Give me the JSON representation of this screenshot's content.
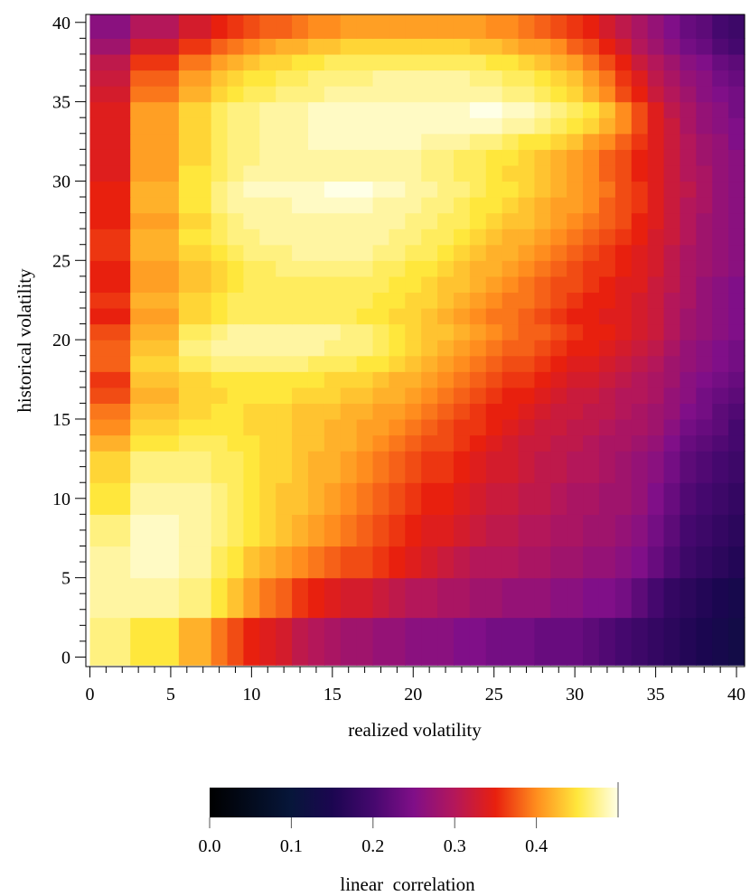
{
  "chart_data": {
    "type": "heatmap",
    "title": "",
    "xlabel": "realized volatility",
    "ylabel": "historical volatility",
    "xlim": [
      0,
      40
    ],
    "ylim": [
      0,
      40
    ],
    "x_ticks": [
      "0",
      "5",
      "10",
      "15",
      "20",
      "25",
      "30",
      "35",
      "40"
    ],
    "y_ticks": [
      "0",
      "5",
      "10",
      "15",
      "20",
      "25",
      "30",
      "35",
      "40"
    ],
    "x_bin_edges": [
      0,
      2.5,
      5.5,
      7.5,
      8.5,
      9.5,
      10.5,
      11.5,
      12.5,
      13.5,
      14.5,
      15.5,
      16.5,
      17.5,
      18.5,
      19.5,
      20.5,
      21.5,
      22.5,
      23.5,
      24.5,
      25.5,
      26.5,
      27.5,
      28.5,
      29.5,
      30.5,
      31.5,
      32.5,
      33.5,
      34.5,
      35.5,
      36.5,
      37.5,
      38.5,
      39.5,
      40.5
    ],
    "y_bin_edges": [
      -0.5,
      2.5,
      5,
      7,
      9,
      11,
      13,
      14,
      15,
      16,
      17,
      18,
      19,
      20,
      21,
      22,
      23,
      24,
      25,
      26,
      27,
      28,
      29,
      30,
      31,
      32,
      33,
      34,
      35,
      36,
      37,
      38,
      39,
      40.5
    ],
    "grid": false,
    "colorbar": {
      "label": "linear  correlation",
      "ticks": [
        "0.0",
        "0.1",
        "0.2",
        "0.3",
        "0.4"
      ],
      "range": [
        0,
        0.5
      ],
      "colormap": "inferno-like (black to purple to red to orange to yellow to pale yellow)"
    },
    "value_description": "linear correlation estimated per cell from colour; each row lists values for the x bins in order, rows ordered from bottom (historical volatility ~0) to top (~40)",
    "values": [
      [
        0.47,
        0.45,
        0.42,
        0.39,
        0.37,
        0.35,
        0.34,
        0.33,
        0.31,
        0.3,
        0.29,
        0.28,
        0.28,
        0.27,
        0.27,
        0.26,
        0.26,
        0.26,
        0.25,
        0.25,
        0.24,
        0.24,
        0.24,
        0.23,
        0.23,
        0.23,
        0.22,
        0.21,
        0.2,
        0.19,
        0.18,
        0.17,
        0.16,
        0.15,
        0.14,
        0.13
      ],
      [
        0.48,
        0.48,
        0.47,
        0.45,
        0.43,
        0.41,
        0.39,
        0.38,
        0.36,
        0.35,
        0.34,
        0.33,
        0.33,
        0.32,
        0.31,
        0.3,
        0.3,
        0.29,
        0.29,
        0.28,
        0.28,
        0.27,
        0.27,
        0.27,
        0.26,
        0.26,
        0.25,
        0.25,
        0.24,
        0.22,
        0.2,
        0.18,
        0.17,
        0.16,
        0.15,
        0.14
      ],
      [
        0.48,
        0.49,
        0.48,
        0.46,
        0.45,
        0.43,
        0.42,
        0.41,
        0.4,
        0.39,
        0.38,
        0.37,
        0.37,
        0.36,
        0.35,
        0.34,
        0.33,
        0.32,
        0.31,
        0.3,
        0.3,
        0.3,
        0.29,
        0.29,
        0.28,
        0.28,
        0.27,
        0.27,
        0.26,
        0.25,
        0.23,
        0.21,
        0.19,
        0.18,
        0.17,
        0.16
      ],
      [
        0.47,
        0.49,
        0.48,
        0.47,
        0.46,
        0.45,
        0.44,
        0.43,
        0.42,
        0.41,
        0.4,
        0.39,
        0.38,
        0.37,
        0.36,
        0.35,
        0.34,
        0.34,
        0.33,
        0.32,
        0.31,
        0.31,
        0.3,
        0.3,
        0.29,
        0.29,
        0.28,
        0.28,
        0.27,
        0.26,
        0.24,
        0.22,
        0.2,
        0.19,
        0.18,
        0.17
      ],
      [
        0.45,
        0.48,
        0.48,
        0.47,
        0.46,
        0.45,
        0.44,
        0.43,
        0.43,
        0.42,
        0.41,
        0.4,
        0.39,
        0.38,
        0.37,
        0.36,
        0.35,
        0.35,
        0.34,
        0.33,
        0.32,
        0.32,
        0.31,
        0.31,
        0.3,
        0.29,
        0.29,
        0.28,
        0.28,
        0.27,
        0.25,
        0.23,
        0.21,
        0.2,
        0.19,
        0.18
      ],
      [
        0.44,
        0.47,
        0.47,
        0.46,
        0.46,
        0.45,
        0.44,
        0.44,
        0.43,
        0.42,
        0.42,
        0.41,
        0.4,
        0.39,
        0.38,
        0.37,
        0.36,
        0.36,
        0.35,
        0.34,
        0.33,
        0.33,
        0.32,
        0.31,
        0.31,
        0.3,
        0.3,
        0.29,
        0.28,
        0.27,
        0.26,
        0.24,
        0.22,
        0.21,
        0.2,
        0.19
      ],
      [
        0.42,
        0.45,
        0.46,
        0.46,
        0.45,
        0.45,
        0.44,
        0.44,
        0.43,
        0.43,
        0.42,
        0.42,
        0.41,
        0.4,
        0.39,
        0.38,
        0.37,
        0.37,
        0.36,
        0.35,
        0.34,
        0.33,
        0.32,
        0.32,
        0.31,
        0.31,
        0.3,
        0.29,
        0.29,
        0.28,
        0.27,
        0.25,
        0.23,
        0.22,
        0.21,
        0.2
      ],
      [
        0.4,
        0.44,
        0.45,
        0.45,
        0.45,
        0.44,
        0.44,
        0.44,
        0.43,
        0.43,
        0.42,
        0.42,
        0.41,
        0.41,
        0.4,
        0.39,
        0.38,
        0.37,
        0.36,
        0.36,
        0.35,
        0.34,
        0.33,
        0.32,
        0.32,
        0.31,
        0.31,
        0.3,
        0.29,
        0.29,
        0.28,
        0.26,
        0.24,
        0.23,
        0.22,
        0.2
      ],
      [
        0.39,
        0.43,
        0.44,
        0.45,
        0.45,
        0.44,
        0.44,
        0.44,
        0.43,
        0.43,
        0.43,
        0.42,
        0.42,
        0.41,
        0.41,
        0.4,
        0.39,
        0.38,
        0.37,
        0.36,
        0.35,
        0.35,
        0.34,
        0.33,
        0.32,
        0.32,
        0.31,
        0.31,
        0.3,
        0.29,
        0.28,
        0.27,
        0.25,
        0.24,
        0.22,
        0.21
      ],
      [
        0.37,
        0.42,
        0.44,
        0.44,
        0.45,
        0.45,
        0.45,
        0.45,
        0.44,
        0.44,
        0.44,
        0.43,
        0.43,
        0.42,
        0.42,
        0.41,
        0.4,
        0.39,
        0.38,
        0.37,
        0.36,
        0.35,
        0.35,
        0.34,
        0.33,
        0.32,
        0.32,
        0.31,
        0.3,
        0.3,
        0.29,
        0.27,
        0.26,
        0.24,
        0.23,
        0.22
      ],
      [
        0.36,
        0.43,
        0.44,
        0.45,
        0.45,
        0.45,
        0.45,
        0.45,
        0.45,
        0.45,
        0.44,
        0.44,
        0.44,
        0.43,
        0.42,
        0.42,
        0.41,
        0.4,
        0.39,
        0.38,
        0.37,
        0.36,
        0.36,
        0.35,
        0.34,
        0.33,
        0.33,
        0.32,
        0.31,
        0.3,
        0.29,
        0.28,
        0.26,
        0.25,
        0.24,
        0.23
      ],
      [
        0.38,
        0.44,
        0.46,
        0.47,
        0.47,
        0.47,
        0.47,
        0.47,
        0.47,
        0.46,
        0.46,
        0.46,
        0.45,
        0.45,
        0.44,
        0.43,
        0.42,
        0.41,
        0.4,
        0.39,
        0.38,
        0.37,
        0.37,
        0.36,
        0.35,
        0.34,
        0.34,
        0.33,
        0.32,
        0.31,
        0.3,
        0.28,
        0.27,
        0.26,
        0.25,
        0.24
      ],
      [
        0.38,
        0.43,
        0.47,
        0.48,
        0.48,
        0.48,
        0.48,
        0.48,
        0.48,
        0.48,
        0.47,
        0.47,
        0.47,
        0.46,
        0.45,
        0.44,
        0.43,
        0.42,
        0.41,
        0.4,
        0.39,
        0.38,
        0.38,
        0.37,
        0.36,
        0.35,
        0.35,
        0.34,
        0.33,
        0.32,
        0.31,
        0.29,
        0.27,
        0.26,
        0.25,
        0.24
      ],
      [
        0.37,
        0.42,
        0.46,
        0.47,
        0.48,
        0.48,
        0.48,
        0.48,
        0.48,
        0.48,
        0.48,
        0.47,
        0.47,
        0.46,
        0.45,
        0.44,
        0.43,
        0.43,
        0.42,
        0.41,
        0.4,
        0.39,
        0.38,
        0.38,
        0.37,
        0.36,
        0.35,
        0.35,
        0.34,
        0.33,
        0.32,
        0.3,
        0.28,
        0.27,
        0.26,
        0.25
      ],
      [
        0.35,
        0.41,
        0.44,
        0.45,
        0.46,
        0.46,
        0.46,
        0.46,
        0.46,
        0.46,
        0.46,
        0.46,
        0.45,
        0.45,
        0.44,
        0.44,
        0.43,
        0.42,
        0.41,
        0.4,
        0.39,
        0.39,
        0.38,
        0.37,
        0.36,
        0.35,
        0.35,
        0.34,
        0.34,
        0.33,
        0.32,
        0.3,
        0.28,
        0.27,
        0.26,
        0.25
      ],
      [
        0.36,
        0.42,
        0.44,
        0.45,
        0.46,
        0.46,
        0.46,
        0.46,
        0.46,
        0.46,
        0.46,
        0.46,
        0.46,
        0.45,
        0.45,
        0.44,
        0.44,
        0.43,
        0.42,
        0.41,
        0.4,
        0.39,
        0.39,
        0.38,
        0.37,
        0.36,
        0.35,
        0.35,
        0.34,
        0.33,
        0.32,
        0.3,
        0.29,
        0.27,
        0.26,
        0.25
      ],
      [
        0.35,
        0.41,
        0.43,
        0.44,
        0.45,
        0.46,
        0.46,
        0.46,
        0.46,
        0.46,
        0.46,
        0.46,
        0.46,
        0.46,
        0.45,
        0.45,
        0.44,
        0.43,
        0.43,
        0.42,
        0.41,
        0.4,
        0.39,
        0.38,
        0.37,
        0.37,
        0.36,
        0.35,
        0.34,
        0.34,
        0.32,
        0.31,
        0.29,
        0.27,
        0.26,
        0.25
      ],
      [
        0.35,
        0.41,
        0.43,
        0.44,
        0.45,
        0.46,
        0.46,
        0.47,
        0.47,
        0.47,
        0.47,
        0.47,
        0.47,
        0.46,
        0.46,
        0.45,
        0.45,
        0.44,
        0.43,
        0.42,
        0.42,
        0.41,
        0.4,
        0.39,
        0.38,
        0.37,
        0.36,
        0.36,
        0.35,
        0.34,
        0.33,
        0.31,
        0.29,
        0.28,
        0.27,
        0.26
      ],
      [
        0.36,
        0.42,
        0.44,
        0.45,
        0.46,
        0.47,
        0.47,
        0.47,
        0.48,
        0.48,
        0.48,
        0.48,
        0.48,
        0.47,
        0.47,
        0.46,
        0.46,
        0.45,
        0.44,
        0.43,
        0.42,
        0.42,
        0.41,
        0.4,
        0.39,
        0.38,
        0.37,
        0.36,
        0.35,
        0.34,
        0.33,
        0.31,
        0.29,
        0.28,
        0.27,
        0.26
      ],
      [
        0.36,
        0.42,
        0.45,
        0.46,
        0.47,
        0.47,
        0.48,
        0.48,
        0.48,
        0.48,
        0.48,
        0.48,
        0.48,
        0.48,
        0.47,
        0.47,
        0.46,
        0.46,
        0.45,
        0.44,
        0.43,
        0.42,
        0.42,
        0.41,
        0.4,
        0.39,
        0.38,
        0.37,
        0.36,
        0.35,
        0.33,
        0.32,
        0.3,
        0.28,
        0.27,
        0.26
      ],
      [
        0.35,
        0.41,
        0.44,
        0.46,
        0.47,
        0.48,
        0.48,
        0.48,
        0.48,
        0.48,
        0.48,
        0.48,
        0.48,
        0.48,
        0.48,
        0.47,
        0.47,
        0.46,
        0.46,
        0.45,
        0.44,
        0.43,
        0.43,
        0.42,
        0.41,
        0.4,
        0.39,
        0.38,
        0.37,
        0.35,
        0.34,
        0.32,
        0.3,
        0.28,
        0.27,
        0.26
      ],
      [
        0.35,
        0.42,
        0.45,
        0.47,
        0.48,
        0.48,
        0.48,
        0.48,
        0.49,
        0.49,
        0.49,
        0.49,
        0.49,
        0.48,
        0.48,
        0.48,
        0.47,
        0.47,
        0.46,
        0.45,
        0.45,
        0.44,
        0.43,
        0.42,
        0.41,
        0.41,
        0.4,
        0.38,
        0.37,
        0.36,
        0.34,
        0.32,
        0.3,
        0.29,
        0.27,
        0.26
      ],
      [
        0.35,
        0.42,
        0.45,
        0.47,
        0.48,
        0.49,
        0.49,
        0.49,
        0.49,
        0.49,
        0.5,
        0.5,
        0.5,
        0.49,
        0.49,
        0.48,
        0.48,
        0.47,
        0.47,
        0.46,
        0.45,
        0.45,
        0.44,
        0.43,
        0.42,
        0.41,
        0.4,
        0.39,
        0.37,
        0.36,
        0.34,
        0.32,
        0.31,
        0.29,
        0.27,
        0.26
      ],
      [
        0.34,
        0.41,
        0.45,
        0.46,
        0.47,
        0.48,
        0.48,
        0.48,
        0.48,
        0.48,
        0.48,
        0.48,
        0.48,
        0.48,
        0.48,
        0.48,
        0.47,
        0.47,
        0.46,
        0.46,
        0.45,
        0.44,
        0.44,
        0.43,
        0.42,
        0.41,
        0.4,
        0.38,
        0.37,
        0.35,
        0.34,
        0.32,
        0.3,
        0.29,
        0.27,
        0.26
      ],
      [
        0.34,
        0.41,
        0.44,
        0.46,
        0.47,
        0.47,
        0.48,
        0.48,
        0.48,
        0.48,
        0.48,
        0.48,
        0.48,
        0.48,
        0.48,
        0.48,
        0.47,
        0.47,
        0.46,
        0.46,
        0.45,
        0.45,
        0.44,
        0.43,
        0.42,
        0.41,
        0.4,
        0.38,
        0.37,
        0.35,
        0.34,
        0.32,
        0.3,
        0.28,
        0.27,
        0.26
      ],
      [
        0.34,
        0.41,
        0.44,
        0.46,
        0.47,
        0.47,
        0.48,
        0.48,
        0.48,
        0.49,
        0.49,
        0.49,
        0.49,
        0.49,
        0.49,
        0.49,
        0.48,
        0.48,
        0.48,
        0.47,
        0.47,
        0.46,
        0.45,
        0.45,
        0.44,
        0.43,
        0.41,
        0.4,
        0.38,
        0.36,
        0.34,
        0.32,
        0.3,
        0.28,
        0.27,
        0.25
      ],
      [
        0.34,
        0.41,
        0.44,
        0.46,
        0.47,
        0.47,
        0.48,
        0.48,
        0.48,
        0.49,
        0.49,
        0.49,
        0.49,
        0.49,
        0.49,
        0.49,
        0.49,
        0.49,
        0.49,
        0.49,
        0.49,
        0.48,
        0.48,
        0.47,
        0.46,
        0.45,
        0.44,
        0.42,
        0.4,
        0.37,
        0.34,
        0.32,
        0.29,
        0.27,
        0.26,
        0.25
      ],
      [
        0.34,
        0.41,
        0.44,
        0.46,
        0.47,
        0.47,
        0.48,
        0.48,
        0.48,
        0.49,
        0.49,
        0.49,
        0.49,
        0.49,
        0.49,
        0.49,
        0.49,
        0.49,
        0.49,
        0.5,
        0.5,
        0.49,
        0.49,
        0.48,
        0.47,
        0.46,
        0.45,
        0.43,
        0.4,
        0.37,
        0.34,
        0.31,
        0.29,
        0.27,
        0.26,
        0.24
      ],
      [
        0.33,
        0.39,
        0.42,
        0.44,
        0.45,
        0.46,
        0.46,
        0.47,
        0.47,
        0.47,
        0.48,
        0.48,
        0.48,
        0.48,
        0.48,
        0.48,
        0.48,
        0.48,
        0.48,
        0.48,
        0.48,
        0.47,
        0.47,
        0.46,
        0.45,
        0.44,
        0.42,
        0.4,
        0.37,
        0.35,
        0.32,
        0.3,
        0.28,
        0.26,
        0.25,
        0.24
      ],
      [
        0.32,
        0.38,
        0.41,
        0.43,
        0.44,
        0.45,
        0.45,
        0.46,
        0.46,
        0.47,
        0.47,
        0.47,
        0.47,
        0.48,
        0.48,
        0.48,
        0.48,
        0.48,
        0.48,
        0.47,
        0.47,
        0.46,
        0.46,
        0.45,
        0.44,
        0.43,
        0.41,
        0.39,
        0.36,
        0.34,
        0.31,
        0.29,
        0.27,
        0.26,
        0.24,
        0.23
      ],
      [
        0.31,
        0.36,
        0.39,
        0.41,
        0.42,
        0.43,
        0.44,
        0.44,
        0.45,
        0.45,
        0.46,
        0.46,
        0.46,
        0.46,
        0.46,
        0.46,
        0.46,
        0.46,
        0.46,
        0.46,
        0.45,
        0.45,
        0.44,
        0.43,
        0.42,
        0.41,
        0.39,
        0.37,
        0.35,
        0.32,
        0.3,
        0.28,
        0.26,
        0.25,
        0.23,
        0.22
      ],
      [
        0.28,
        0.33,
        0.36,
        0.38,
        0.39,
        0.4,
        0.41,
        0.42,
        0.42,
        0.43,
        0.43,
        0.44,
        0.44,
        0.44,
        0.44,
        0.44,
        0.44,
        0.44,
        0.44,
        0.43,
        0.43,
        0.42,
        0.41,
        0.41,
        0.4,
        0.38,
        0.37,
        0.35,
        0.33,
        0.3,
        0.28,
        0.26,
        0.24,
        0.23,
        0.21,
        0.2
      ],
      [
        0.26,
        0.3,
        0.33,
        0.35,
        0.36,
        0.37,
        0.38,
        0.38,
        0.39,
        0.4,
        0.4,
        0.41,
        0.41,
        0.41,
        0.41,
        0.41,
        0.41,
        0.41,
        0.41,
        0.41,
        0.4,
        0.4,
        0.39,
        0.38,
        0.37,
        0.36,
        0.35,
        0.33,
        0.31,
        0.29,
        0.27,
        0.25,
        0.23,
        0.22,
        0.2,
        0.19
      ]
    ]
  }
}
